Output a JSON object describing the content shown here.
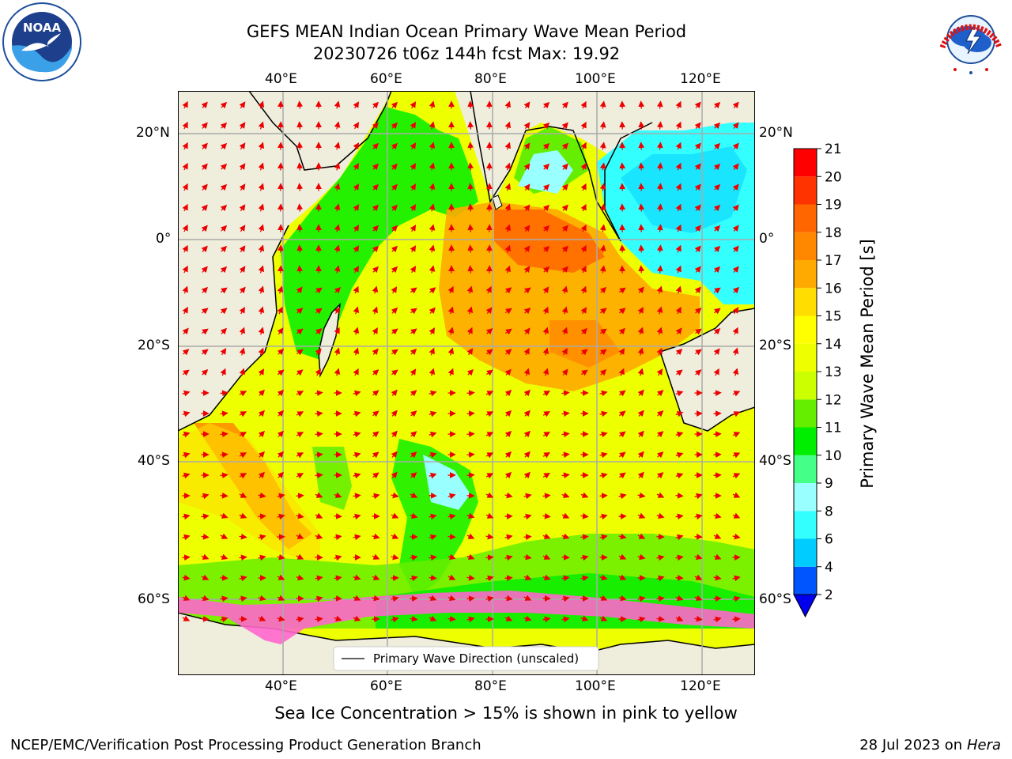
{
  "title_line1": "GEFS MEAN Indian Ocean Primary Wave Mean Period",
  "title_line2": "20230726 t06z 144h fcst   Max: 19.92",
  "lon_ticks": [
    "40°E",
    "60°E",
    "80°E",
    "100°E",
    "120°E"
  ],
  "lat_ticks": [
    "20°N",
    "0°",
    "20°S",
    "40°S",
    "60°S"
  ],
  "legend_label": "Primary Wave Direction (unscaled)",
  "colorbar": {
    "label": "Primary Wave Mean Period [s]",
    "ticks": [
      "2",
      "4",
      "6",
      "8",
      "9",
      "10",
      "11",
      "12",
      "13",
      "14",
      "15",
      "16",
      "17",
      "18",
      "19",
      "20",
      "21"
    ],
    "colors": [
      "#0055ff",
      "#00ccff",
      "#33ffff",
      "#99ffff",
      "#44ff88",
      "#00ee00",
      "#66ee00",
      "#ccff00",
      "#eeff00",
      "#ffff00",
      "#ffdd00",
      "#ffaa00",
      "#ff8800",
      "#ff6600",
      "#ff3300",
      "#ff0000"
    ],
    "under_color": "#0000ee"
  },
  "sea_ice_note": "Sea Ice Concentration > 15% is shown in pink to yellow",
  "footer_left": "NCEP/EMC/Verification Post Processing Product Generation Branch",
  "footer_right_date": "28 Jul 2023 on ",
  "footer_right_host": "Hera",
  "logos": {
    "left": "NOAA",
    "right_letters": "NATIONAL WEATHER SERVICE"
  },
  "colors": {
    "land": "#efeddc",
    "arrow": "#ee0000",
    "ice": "#ff66cc"
  }
}
